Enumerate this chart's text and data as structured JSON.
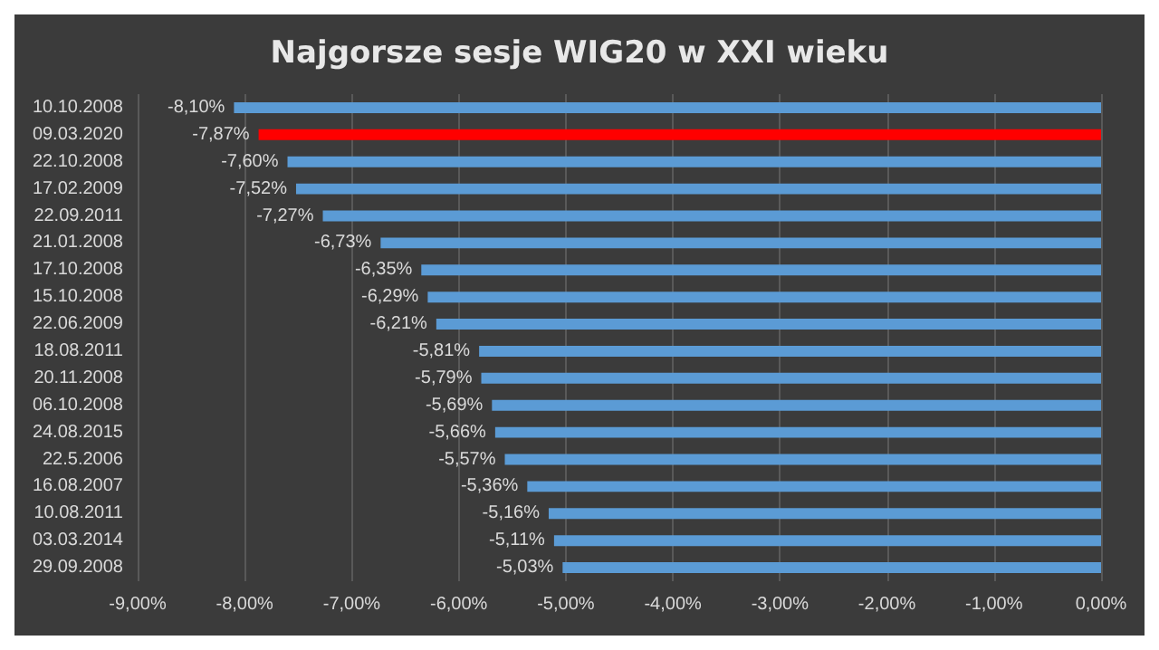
{
  "chart_data": {
    "type": "bar",
    "orientation": "horizontal",
    "title": "Najgorsze sesje WIG20 w XXI wieku",
    "categories": [
      "10.10.2008",
      "09.03.2020",
      "22.10.2008",
      "17.02.2009",
      "22.09.2011",
      "21.01.2008",
      "17.10.2008",
      "15.10.2008",
      "22.06.2009",
      "18.08.2011",
      "20.11.2008",
      "06.10.2008",
      "24.08.2015",
      "22.5.2006",
      "16.08.2007",
      "10.08.2011",
      "03.03.2014",
      "29.09.2008"
    ],
    "values": [
      -8.1,
      -7.87,
      -7.6,
      -7.52,
      -7.27,
      -6.73,
      -6.35,
      -6.29,
      -6.21,
      -5.81,
      -5.79,
      -5.69,
      -5.66,
      -5.57,
      -5.36,
      -5.16,
      -5.11,
      -5.03
    ],
    "value_labels": [
      "-8,10%",
      "-7,87%",
      "-7,60%",
      "-7,52%",
      "-7,27%",
      "-6,73%",
      "-6,35%",
      "-6,29%",
      "-6,21%",
      "-5,81%",
      "-5,79%",
      "-5,69%",
      "-5,66%",
      "-5,57%",
      "-5,36%",
      "-5,16%",
      "-5,11%",
      "-5,03%"
    ],
    "colors": [
      "#5b9bd5",
      "#ff0000",
      "#5b9bd5",
      "#5b9bd5",
      "#5b9bd5",
      "#5b9bd5",
      "#5b9bd5",
      "#5b9bd5",
      "#5b9bd5",
      "#5b9bd5",
      "#5b9bd5",
      "#5b9bd5",
      "#5b9bd5",
      "#5b9bd5",
      "#5b9bd5",
      "#5b9bd5",
      "#5b9bd5",
      "#5b9bd5"
    ],
    "xlim": [
      -9,
      0
    ],
    "xticks": [
      {
        "value": -9,
        "label": "-9,00%"
      },
      {
        "value": -8,
        "label": "-8,00%"
      },
      {
        "value": -7,
        "label": "-7,00%"
      },
      {
        "value": -6,
        "label": "-6,00%"
      },
      {
        "value": -5,
        "label": "-5,00%"
      },
      {
        "value": -4,
        "label": "-4,00%"
      },
      {
        "value": -3,
        "label": "-3,00%"
      },
      {
        "value": -2,
        "label": "-2,00%"
      },
      {
        "value": -1,
        "label": "-1,00%"
      },
      {
        "value": 0,
        "label": "0,00%"
      }
    ],
    "grid": "x"
  }
}
